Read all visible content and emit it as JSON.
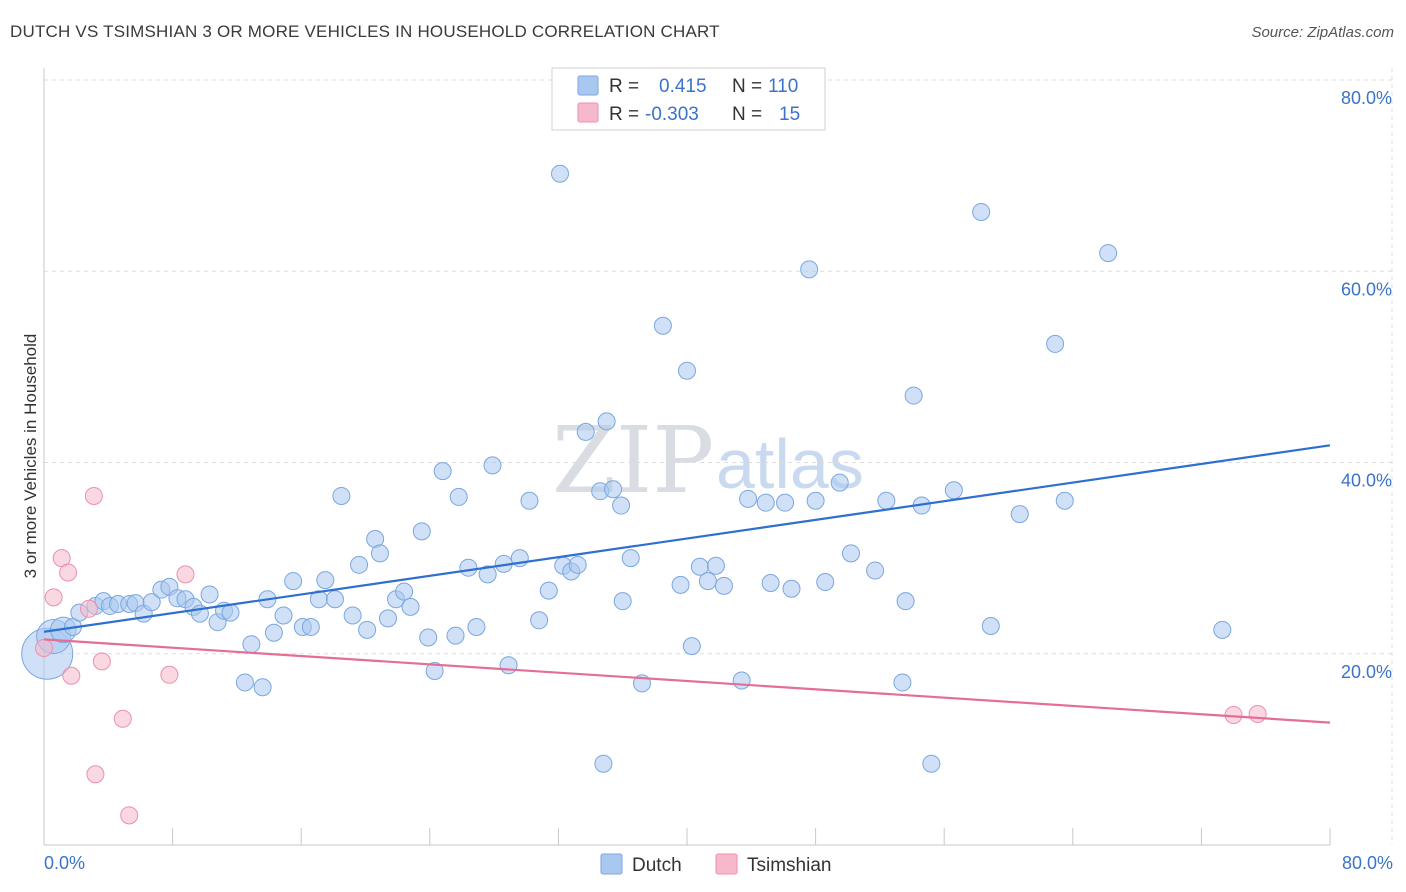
{
  "header": {
    "title": "DUTCH VS TSIMSHIAN 3 OR MORE VEHICLES IN HOUSEHOLD CORRELATION CHART",
    "source": "Source: ZipAtlas.com"
  },
  "watermark": {
    "zip": "ZIP",
    "atlas": "atlas"
  },
  "legend_top": {
    "rows": [
      {
        "r_label": "R =",
        "r_value": "0.415",
        "n_label": "N =",
        "n_value": "110"
      },
      {
        "r_label": "R =",
        "r_value": "-0.303",
        "n_label": "N =",
        "n_value": "15"
      }
    ]
  },
  "legend_bottom": {
    "dutch": "Dutch",
    "tsimshian": "Tsimshian"
  },
  "colors": {
    "dutch_fill": "#a9c8f0",
    "dutch_stroke": "#7aa6e0",
    "dutch_line": "#2f6fd0",
    "tsim_fill": "#f6b8cb",
    "tsim_stroke": "#ec8fae",
    "tsim_line": "#e46e98",
    "grid": "#dddddd",
    "tick_text": "#3a73c9"
  },
  "chart_data": {
    "type": "scatter",
    "title": "DUTCH VS TSIMSHIAN 3 OR MORE VEHICLES IN HOUSEHOLD CORRELATION CHART",
    "xlabel": "",
    "ylabel": "3 or more Vehicles in Household",
    "xlim": [
      0,
      80
    ],
    "ylim": [
      0,
      80
    ],
    "x_tick_labels": [
      "0.0%",
      "80.0%"
    ],
    "y_ticks": [
      20,
      40,
      60,
      80
    ],
    "y_tick_labels": [
      "20.0%",
      "40.0%",
      "60.0%",
      "80.0%"
    ],
    "grid": true,
    "legend": "top-center",
    "series": [
      {
        "name": "Dutch",
        "r": 0.415,
        "n": 110,
        "trend": {
          "x": [
            0,
            80
          ],
          "y": [
            22.3,
            41.8
          ]
        },
        "points": [
          [
            0.2,
            20.0,
            3
          ],
          [
            0.6,
            21.8,
            2
          ],
          [
            1.2,
            22.5,
            1.5
          ],
          [
            1.8,
            22.8,
            1
          ],
          [
            2.2,
            24.3,
            1
          ],
          [
            3.2,
            25.0,
            1
          ],
          [
            3.7,
            25.5,
            1
          ],
          [
            4.1,
            25.0,
            1
          ],
          [
            4.6,
            25.2,
            1
          ],
          [
            5.3,
            25.2,
            1
          ],
          [
            5.7,
            25.3,
            1
          ],
          [
            6.2,
            24.2,
            1
          ],
          [
            6.7,
            25.4,
            1
          ],
          [
            7.3,
            26.7,
            1
          ],
          [
            7.8,
            27.0,
            1
          ],
          [
            8.3,
            25.8,
            1
          ],
          [
            8.8,
            25.7,
            1
          ],
          [
            9.3,
            24.9,
            1
          ],
          [
            9.7,
            24.2,
            1
          ],
          [
            10.3,
            26.2,
            1
          ],
          [
            10.8,
            23.3,
            1
          ],
          [
            11.2,
            24.5,
            1
          ],
          [
            11.6,
            24.3,
            1
          ],
          [
            12.5,
            17.0,
            1
          ],
          [
            12.9,
            21.0,
            1
          ],
          [
            13.6,
            16.5,
            1
          ],
          [
            13.9,
            25.7,
            1
          ],
          [
            14.3,
            22.2,
            1
          ],
          [
            14.9,
            24.0,
            1
          ],
          [
            15.5,
            27.6,
            1
          ],
          [
            16.1,
            22.8,
            1
          ],
          [
            16.6,
            22.8,
            1
          ],
          [
            17.1,
            25.7,
            1
          ],
          [
            17.5,
            27.7,
            1
          ],
          [
            18.1,
            25.7,
            1
          ],
          [
            18.5,
            36.5,
            1
          ],
          [
            19.2,
            24.0,
            1
          ],
          [
            19.6,
            29.3,
            1
          ],
          [
            20.1,
            22.5,
            1
          ],
          [
            20.6,
            32.0,
            1
          ],
          [
            20.9,
            30.5,
            1
          ],
          [
            21.4,
            23.7,
            1
          ],
          [
            21.9,
            25.7,
            1
          ],
          [
            22.4,
            26.5,
            1
          ],
          [
            22.8,
            24.9,
            1
          ],
          [
            23.5,
            32.8,
            1
          ],
          [
            23.9,
            21.7,
            1
          ],
          [
            24.3,
            18.2,
            1
          ],
          [
            24.8,
            39.1,
            1
          ],
          [
            25.6,
            21.9,
            1
          ],
          [
            25.8,
            36.4,
            1
          ],
          [
            26.4,
            29.0,
            1
          ],
          [
            26.9,
            22.8,
            1
          ],
          [
            27.6,
            28.3,
            1
          ],
          [
            27.9,
            39.7,
            1
          ],
          [
            28.6,
            29.4,
            1
          ],
          [
            28.9,
            18.8,
            1
          ],
          [
            29.6,
            30.0,
            1
          ],
          [
            30.2,
            36.0,
            1
          ],
          [
            30.8,
            23.5,
            1
          ],
          [
            31.4,
            26.6,
            1
          ],
          [
            32.1,
            70.2,
            1
          ],
          [
            32.3,
            29.2,
            1
          ],
          [
            32.8,
            28.6,
            1
          ],
          [
            33.2,
            29.3,
            1
          ],
          [
            33.7,
            43.2,
            1
          ],
          [
            34.6,
            37.0,
            1
          ],
          [
            34.8,
            8.5,
            1
          ],
          [
            35.0,
            44.3,
            1
          ],
          [
            35.4,
            37.2,
            1
          ],
          [
            35.9,
            35.5,
            1
          ],
          [
            36.0,
            25.5,
            1
          ],
          [
            36.5,
            30.0,
            1
          ],
          [
            37.2,
            16.9,
            1
          ],
          [
            38.5,
            54.3,
            1
          ],
          [
            39.6,
            27.2,
            1
          ],
          [
            40.0,
            49.6,
            1
          ],
          [
            40.3,
            20.8,
            1
          ],
          [
            40.8,
            29.1,
            1
          ],
          [
            41.3,
            27.6,
            1
          ],
          [
            41.8,
            29.2,
            1
          ],
          [
            42.3,
            27.1,
            1
          ],
          [
            43.4,
            17.2,
            1
          ],
          [
            43.8,
            36.2,
            1
          ],
          [
            44.9,
            35.8,
            1
          ],
          [
            45.2,
            27.4,
            1
          ],
          [
            46.1,
            35.8,
            1
          ],
          [
            46.5,
            26.8,
            1
          ],
          [
            47.6,
            60.2,
            1
          ],
          [
            48.0,
            36.0,
            1
          ],
          [
            48.6,
            27.5,
            1
          ],
          [
            49.5,
            37.9,
            1
          ],
          [
            50.2,
            30.5,
            1
          ],
          [
            51.7,
            28.7,
            1
          ],
          [
            52.4,
            36.0,
            1
          ],
          [
            53.4,
            17.0,
            1
          ],
          [
            53.6,
            25.5,
            1
          ],
          [
            54.1,
            47.0,
            1
          ],
          [
            54.6,
            35.5,
            1
          ],
          [
            55.2,
            8.5,
            1
          ],
          [
            56.6,
            37.1,
            1
          ],
          [
            58.3,
            66.2,
            1
          ],
          [
            58.9,
            22.9,
            1
          ],
          [
            60.7,
            34.6,
            1
          ],
          [
            62.9,
            52.4,
            1
          ],
          [
            63.5,
            36.0,
            1
          ],
          [
            66.2,
            61.9,
            1
          ],
          [
            73.3,
            22.5,
            1
          ]
        ]
      },
      {
        "name": "Tsimshian",
        "r": -0.303,
        "n": 15,
        "trend": {
          "x": [
            0,
            80
          ],
          "y": [
            21.5,
            12.8
          ]
        },
        "points": [
          [
            0.0,
            20.6
          ],
          [
            0.6,
            25.9
          ],
          [
            1.1,
            30.0
          ],
          [
            1.5,
            28.5
          ],
          [
            1.7,
            17.7
          ],
          [
            2.8,
            24.7
          ],
          [
            3.1,
            36.5
          ],
          [
            3.2,
            7.4
          ],
          [
            3.6,
            19.2
          ],
          [
            4.9,
            13.2
          ],
          [
            5.3,
            3.1
          ],
          [
            7.8,
            17.8
          ],
          [
            8.8,
            28.3
          ],
          [
            74.0,
            13.6
          ],
          [
            75.5,
            13.7
          ]
        ]
      }
    ]
  }
}
